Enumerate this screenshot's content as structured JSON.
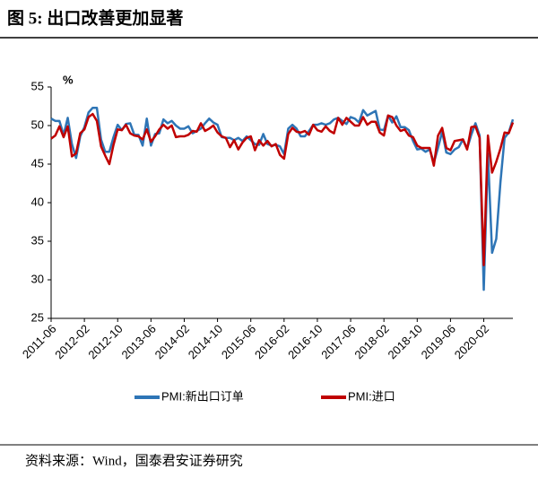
{
  "chart_data": {
    "type": "line",
    "title": "图 5:  出口改善更加显著",
    "y_label": "%",
    "source": "资料来源：Wind，国泰君安证券研究",
    "categories": [
      "2011-06",
      null,
      null,
      null,
      null,
      null,
      null,
      null,
      "2012-02",
      null,
      null,
      null,
      null,
      null,
      null,
      null,
      "2012-10",
      null,
      null,
      null,
      null,
      null,
      null,
      null,
      "2013-06",
      null,
      null,
      null,
      null,
      null,
      null,
      null,
      "2014-02",
      null,
      null,
      null,
      null,
      null,
      null,
      null,
      "2014-10",
      null,
      null,
      null,
      null,
      null,
      null,
      null,
      "2015-06",
      null,
      null,
      null,
      null,
      null,
      null,
      null,
      "2016-02",
      null,
      null,
      null,
      null,
      null,
      null,
      null,
      "2016-10",
      null,
      null,
      null,
      null,
      null,
      null,
      null,
      "2017-06",
      null,
      null,
      null,
      null,
      null,
      null,
      null,
      "2018-02",
      null,
      null,
      null,
      null,
      null,
      null,
      null,
      "2018-10",
      null,
      null,
      null,
      null,
      null,
      null,
      null,
      "2019-06",
      null,
      null,
      null,
      null,
      null,
      null,
      null,
      "2020-02",
      null,
      null,
      null,
      null,
      null,
      null,
      null
    ],
    "series": [
      {
        "name": "PMI:新出口订单",
        "color": "#2e75b6",
        "values": [
          50.9,
          50.6,
          50.6,
          48.8,
          51.0,
          47.6,
          45.8,
          48.6,
          49.8,
          51.7,
          52.3,
          52.3,
          48.2,
          46.6,
          46.6,
          48.5,
          50.1,
          49.4,
          50.2,
          50.3,
          48.8,
          48.8,
          47.4,
          50.9,
          47.4,
          48.9,
          49.0,
          50.8,
          50.3,
          50.6,
          50.0,
          49.6,
          49.6,
          49.9,
          49.0,
          49.3,
          49.6,
          50.3,
          50.9,
          50.4,
          50.1,
          48.5,
          48.4,
          48.4,
          48.1,
          48.4,
          48.0,
          48.6,
          48.1,
          47.6,
          47.5,
          48.9,
          47.6,
          47.4,
          47.5,
          47.3,
          46.3,
          49.6,
          50.1,
          49.6,
          48.6,
          48.6,
          49.3,
          50.1,
          50.1,
          50.3,
          50.1,
          50.3,
          50.8,
          51.0,
          50.6,
          50.2,
          51.1,
          50.9,
          50.4,
          52.0,
          51.3,
          51.6,
          51.9,
          49.5,
          49.4,
          51.3,
          50.4,
          51.2,
          49.8,
          49.8,
          49.4,
          48.0,
          46.9,
          47.0,
          46.6,
          46.9,
          45.2,
          47.1,
          49.2,
          46.5,
          46.3,
          46.9,
          47.2,
          48.2,
          47.0,
          48.8,
          50.3,
          48.7,
          28.7,
          46.4,
          33.5,
          35.3,
          42.6,
          48.4,
          49.1,
          50.8
        ]
      },
      {
        "name": "PMI:进口",
        "color": "#c00000",
        "values": [
          48.3,
          48.7,
          49.9,
          48.5,
          49.9,
          46.0,
          46.4,
          49.0,
          49.5,
          51.1,
          51.5,
          50.6,
          47.3,
          46.1,
          45.0,
          47.5,
          49.5,
          49.4,
          50.1,
          49.0,
          48.7,
          48.6,
          48.2,
          49.5,
          47.9,
          48.6,
          49.5,
          50.1,
          49.6,
          50.0,
          48.5,
          48.6,
          48.6,
          48.8,
          49.3,
          49.2,
          50.3,
          49.3,
          49.6,
          50.0,
          49.1,
          48.6,
          48.4,
          47.2,
          48.1,
          46.9,
          47.8,
          48.4,
          48.6,
          46.8,
          48.1,
          47.4,
          48.0,
          47.3,
          47.6,
          46.2,
          45.7,
          48.9,
          49.7,
          49.2,
          49.1,
          49.3,
          48.8,
          50.1,
          49.4,
          49.2,
          49.9,
          49.3,
          49.0,
          51.0,
          50.1,
          51.0,
          50.5,
          50.0,
          50.0,
          51.1,
          50.1,
          50.5,
          50.5,
          49.1,
          48.7,
          51.3,
          51.1,
          50.0,
          49.3,
          49.5,
          48.7,
          48.5,
          47.4,
          47.1,
          47.1,
          47.1,
          44.8,
          48.7,
          49.7,
          47.1,
          46.8,
          48.0,
          48.1,
          48.2,
          46.9,
          49.8,
          49.9,
          48.4,
          31.9,
          48.7,
          43.9,
          45.3,
          47.0,
          49.1,
          49.0,
          50.4
        ]
      }
    ],
    "ylim": [
      25,
      55
    ],
    "yticks": [
      25,
      30,
      35,
      40,
      45,
      50,
      55
    ],
    "grid": false
  }
}
